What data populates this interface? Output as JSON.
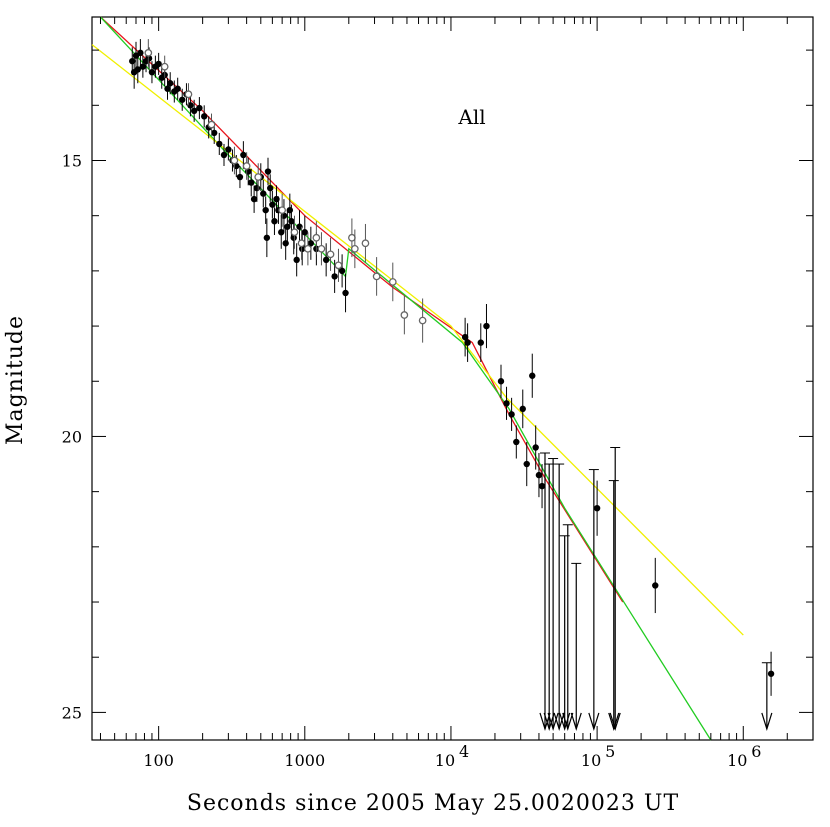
{
  "chart_data": {
    "type": "scatter",
    "title": "",
    "annotation": "All",
    "xlabel": "Seconds since 2005 May 25.0020023 UT",
    "ylabel": "Magnitude",
    "x_scale": "log",
    "xlim": [
      35,
      3000000
    ],
    "ylim": [
      25.5,
      12.4
    ],
    "x_ticks": [
      {
        "value": 100,
        "label": "100"
      },
      {
        "value": 1000,
        "label": "1000"
      },
      {
        "value": 10000,
        "label": "10",
        "exp": "4"
      },
      {
        "value": 100000,
        "label": "10",
        "exp": "5"
      },
      {
        "value": 1000000,
        "label": "10",
        "exp": "6"
      }
    ],
    "y_ticks": [
      {
        "value": 15,
        "label": "15"
      },
      {
        "value": 20,
        "label": "20"
      },
      {
        "value": 25,
        "label": "25"
      }
    ],
    "grid": false,
    "colors": {
      "axis": "#000000",
      "red": "#e8141c",
      "green": "#22cc22",
      "yellow": "#f0f000",
      "points": "#000000",
      "open_points": "#666666"
    },
    "series": [
      {
        "style": "filled",
        "points": [
          [
            66,
            13.2,
            0.25
          ],
          [
            68,
            13.4,
            0.3
          ],
          [
            70,
            13.1,
            0.25
          ],
          [
            72,
            13.35,
            0.25
          ],
          [
            75,
            13.05,
            0.25
          ],
          [
            78,
            13.3,
            0.2
          ],
          [
            82,
            13.2,
            0.2
          ],
          [
            86,
            13.15,
            0.2
          ],
          [
            90,
            13.4,
            0.2
          ],
          [
            95,
            13.3,
            0.2
          ],
          [
            100,
            13.25,
            0.2
          ],
          [
            105,
            13.5,
            0.2
          ],
          [
            110,
            13.45,
            0.2
          ],
          [
            115,
            13.7,
            0.2
          ],
          [
            120,
            13.6,
            0.2
          ],
          [
            128,
            13.75,
            0.2
          ],
          [
            135,
            13.7,
            0.2
          ],
          [
            145,
            13.9,
            0.2
          ],
          [
            155,
            13.8,
            0.2
          ],
          [
            165,
            14.0,
            0.2
          ],
          [
            175,
            14.1,
            0.2
          ],
          [
            190,
            14.05,
            0.2
          ],
          [
            205,
            14.2,
            0.2
          ],
          [
            220,
            14.4,
            0.2
          ],
          [
            240,
            14.5,
            0.2
          ],
          [
            260,
            14.7,
            0.2
          ],
          [
            280,
            14.9,
            0.2
          ],
          [
            300,
            14.8,
            0.2
          ],
          [
            320,
            15.0,
            0.2
          ],
          [
            340,
            15.1,
            0.2
          ],
          [
            360,
            15.3,
            0.2
          ],
          [
            380,
            14.9,
            0.25
          ],
          [
            410,
            15.2,
            0.25
          ],
          [
            430,
            15.4,
            0.25
          ],
          [
            450,
            15.7,
            0.25
          ],
          [
            470,
            15.5,
            0.25
          ],
          [
            500,
            15.3,
            0.25
          ],
          [
            520,
            15.6,
            0.25
          ],
          [
            540,
            15.9,
            0.25
          ],
          [
            560,
            15.2,
            0.25
          ],
          [
            580,
            15.5,
            0.25
          ],
          [
            600,
            15.8,
            0.25
          ],
          [
            620,
            16.1,
            0.25
          ],
          [
            640,
            15.7,
            0.25
          ],
          [
            660,
            15.9,
            0.25
          ],
          [
            690,
            16.3,
            0.3
          ],
          [
            720,
            16.0,
            0.3
          ],
          [
            740,
            16.5,
            0.3
          ],
          [
            760,
            16.2,
            0.3
          ],
          [
            790,
            15.9,
            0.3
          ],
          [
            810,
            16.1,
            0.3
          ],
          [
            840,
            16.4,
            0.3
          ],
          [
            880,
            16.8,
            0.3
          ],
          [
            920,
            16.2,
            0.3
          ],
          [
            960,
            16.6,
            0.3
          ],
          [
            1000,
            16.3,
            0.3
          ],
          [
            1100,
            16.5,
            0.3
          ],
          [
            1200,
            16.6,
            0.3
          ],
          [
            1400,
            16.8,
            0.3
          ],
          [
            1600,
            17.1,
            0.3
          ],
          [
            1800,
            17.0,
            0.3
          ],
          [
            1900,
            17.4,
            0.35
          ],
          [
            550,
            16.4,
            0.35
          ],
          [
            12500,
            18.2,
            0.35
          ],
          [
            13000,
            18.3,
            0.35
          ],
          [
            16000,
            18.3,
            0.35
          ],
          [
            17500,
            18.0,
            0.4
          ],
          [
            22000,
            19.0,
            0.3
          ],
          [
            24000,
            19.4,
            0.3
          ],
          [
            26000,
            19.6,
            0.3
          ],
          [
            28000,
            20.1,
            0.3
          ],
          [
            31000,
            19.5,
            0.35
          ],
          [
            33000,
            20.5,
            0.4
          ],
          [
            36000,
            18.9,
            0.4
          ],
          [
            38000,
            20.2,
            0.4
          ],
          [
            40000,
            20.7,
            0.4
          ],
          [
            42000,
            20.9,
            0.4
          ],
          [
            100000,
            21.3,
            0.5
          ],
          [
            250000,
            22.7,
            0.5
          ],
          [
            1550000,
            24.3,
            0.4
          ]
        ]
      },
      {
        "style": "open",
        "points": [
          [
            85,
            13.05,
            0.25
          ],
          [
            110,
            13.3,
            0.2
          ],
          [
            160,
            13.8,
            0.2
          ],
          [
            230,
            14.35,
            0.2
          ],
          [
            330,
            15.0,
            0.25
          ],
          [
            400,
            15.1,
            0.25
          ],
          [
            480,
            15.3,
            0.25
          ],
          [
            700,
            15.9,
            0.3
          ],
          [
            850,
            16.3,
            0.3
          ],
          [
            950,
            16.5,
            0.3
          ],
          [
            1050,
            16.6,
            0.3
          ],
          [
            1200,
            16.4,
            0.3
          ],
          [
            1300,
            16.6,
            0.3
          ],
          [
            1500,
            16.7,
            0.3
          ],
          [
            1700,
            16.9,
            0.3
          ],
          [
            2100,
            16.4,
            0.35
          ],
          [
            2200,
            16.6,
            0.35
          ],
          [
            2600,
            16.5,
            0.35
          ],
          [
            3100,
            17.1,
            0.35
          ],
          [
            4000,
            17.2,
            0.35
          ],
          [
            4800,
            17.8,
            0.35
          ],
          [
            6400,
            17.9,
            0.4
          ]
        ]
      }
    ],
    "upper_limits": [
      {
        "x": 44000,
        "top": 20.3,
        "bottom": 25.3
      },
      {
        "x": 47000,
        "top": 20.5,
        "bottom": 25.3
      },
      {
        "x": 50000,
        "top": 20.4,
        "bottom": 25.3
      },
      {
        "x": 55000,
        "top": 20.5,
        "bottom": 25.3
      },
      {
        "x": 60000,
        "top": 21.8,
        "bottom": 25.3
      },
      {
        "x": 63000,
        "top": 21.6,
        "bottom": 25.3
      },
      {
        "x": 72000,
        "top": 22.3,
        "bottom": 25.3
      },
      {
        "x": 95000,
        "top": 20.6,
        "bottom": 25.3
      },
      {
        "x": 130000,
        "top": 20.8,
        "bottom": 25.3
      },
      {
        "x": 133000,
        "top": 20.2,
        "bottom": 25.3
      },
      {
        "x": 1450000,
        "top": 24.1,
        "bottom": 25.3
      }
    ],
    "fit_lines": [
      {
        "color": "red",
        "points": [
          [
            40,
            12.4
          ],
          [
            200,
            14.1
          ],
          [
            1000,
            16.0
          ],
          [
            4000,
            17.3
          ],
          [
            14000,
            18.3
          ],
          [
            25000,
            19.6
          ],
          [
            45000,
            20.8
          ],
          [
            150000,
            23.0
          ]
        ]
      },
      {
        "color": "green",
        "points": [
          [
            40,
            12.4
          ],
          [
            300,
            14.9
          ],
          [
            1900,
            17.1
          ],
          [
            2000,
            16.6
          ],
          [
            12000,
            18.3
          ],
          [
            25000,
            19.5
          ],
          [
            60000,
            21.3
          ],
          [
            600000,
            25.5
          ]
        ]
      },
      {
        "color": "yellow",
        "points": [
          [
            35,
            12.9
          ],
          [
            10000,
            18.0
          ],
          [
            24000,
            19.3
          ],
          [
            1000000,
            23.6
          ]
        ]
      }
    ]
  }
}
